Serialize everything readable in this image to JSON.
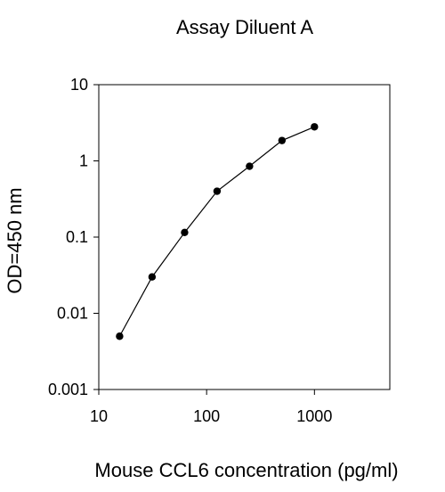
{
  "chart_data": {
    "type": "line",
    "title": "Assay Diluent A",
    "xlabel": "Mouse CCL6 concentration (pg/ml)",
    "ylabel": "OD=450 nm",
    "x_scale": "log",
    "y_scale": "log",
    "xlim": [
      10,
      5000
    ],
    "ylim": [
      0.001,
      10
    ],
    "x_ticks": [
      {
        "value": 10,
        "label": "10"
      },
      {
        "value": 100,
        "label": "100"
      },
      {
        "value": 1000,
        "label": "1000"
      }
    ],
    "y_ticks": [
      {
        "value": 0.001,
        "label": "0.001"
      },
      {
        "value": 0.01,
        "label": "0.01"
      },
      {
        "value": 0.1,
        "label": "0.1"
      },
      {
        "value": 1,
        "label": "1"
      },
      {
        "value": 10,
        "label": "10"
      }
    ],
    "grid": false,
    "legend": "none",
    "colors": {
      "line": "#000000",
      "marker": "#000000",
      "axis": "#000000"
    },
    "series": [
      {
        "x": [
          15.6,
          31.2,
          62.5,
          125,
          250,
          500,
          1000
        ],
        "y": [
          0.005,
          0.03,
          0.115,
          0.4,
          0.85,
          1.85,
          2.8
        ]
      }
    ]
  }
}
